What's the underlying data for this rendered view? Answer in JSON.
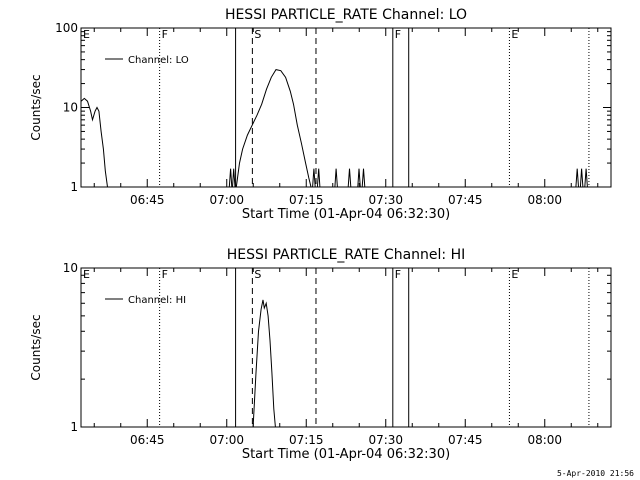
{
  "timestamp": "5-Apr-2010 21:56",
  "chart_data": [
    {
      "type": "line",
      "title": "HESSI PARTICLE_RATE Channel: LO",
      "xlabel": "Start Time (01-Apr-04 06:32:30)",
      "ylabel": "Counts/sec",
      "yscale": "log",
      "ylim": [
        1,
        100
      ],
      "yticks": [
        {
          "v": 1,
          "label": "1"
        },
        {
          "v": 10,
          "label": "10"
        },
        {
          "v": 100,
          "label": "100"
        }
      ],
      "xlim": [
        6.5417,
        8.2083
      ],
      "xticks": [
        {
          "v": 6.75,
          "label": "06:45"
        },
        {
          "v": 7.0,
          "label": "07:00"
        },
        {
          "v": 7.25,
          "label": "07:15"
        },
        {
          "v": 7.5,
          "label": "07:30"
        },
        {
          "v": 7.75,
          "label": "07:45"
        },
        {
          "v": 8.0,
          "label": "08:00"
        }
      ],
      "legend": {
        "label": "Channel: LO",
        "placement": "top-left"
      },
      "grid": false,
      "markers": [
        {
          "t": 6.5417,
          "label": "E",
          "style": "none"
        },
        {
          "t": 6.7889,
          "label": "F",
          "style": "dotted"
        },
        {
          "t": 7.0278,
          "label": "",
          "style": "solid"
        },
        {
          "t": 7.0806,
          "label": "S",
          "style": "dashed"
        },
        {
          "t": 7.2806,
          "label": "",
          "style": "dashed"
        },
        {
          "t": 7.5222,
          "label": "F",
          "style": "solid"
        },
        {
          "t": 7.5722,
          "label": "",
          "style": "solid"
        },
        {
          "t": 7.8889,
          "label": "E",
          "style": "dotted"
        },
        {
          "t": 8.1389,
          "label": "",
          "style": "dotted"
        }
      ],
      "series": [
        {
          "segments": [
            [
              [
                6.542,
                12
              ],
              [
                6.552,
                13
              ],
              [
                6.562,
                12
              ],
              [
                6.572,
                9
              ],
              [
                6.578,
                7
              ],
              [
                6.586,
                9
              ],
              [
                6.592,
                10
              ],
              [
                6.598,
                9
              ],
              [
                6.605,
                5
              ],
              [
                6.612,
                3
              ],
              [
                6.618,
                1.6
              ],
              [
                6.625,
                1
              ]
            ],
            [
              [
                7.008,
                1
              ],
              [
                7.012,
                1.7
              ],
              [
                7.016,
                1
              ]
            ],
            [
              [
                7.018,
                1
              ],
              [
                7.022,
                1.7
              ],
              [
                7.026,
                1
              ]
            ],
            [
              [
                7.03,
                1
              ],
              [
                7.04,
                2
              ],
              [
                7.05,
                3
              ],
              [
                7.065,
                4.5
              ],
              [
                7.08,
                6
              ],
              [
                7.095,
                8
              ],
              [
                7.11,
                11
              ],
              [
                7.125,
                17
              ],
              [
                7.14,
                24
              ],
              [
                7.155,
                30
              ],
              [
                7.17,
                29
              ],
              [
                7.185,
                24
              ],
              [
                7.2,
                16
              ],
              [
                7.21,
                11
              ],
              [
                7.222,
                6
              ],
              [
                7.235,
                3.5
              ],
              [
                7.248,
                2
              ],
              [
                7.258,
                1.3
              ],
              [
                7.265,
                1
              ]
            ],
            [
              [
                7.27,
                1
              ],
              [
                7.274,
                1.7
              ],
              [
                7.278,
                1
              ]
            ],
            [
              [
                7.285,
                1
              ],
              [
                7.289,
                1.7
              ],
              [
                7.293,
                1
              ]
            ],
            [
              [
                7.34,
                1
              ],
              [
                7.344,
                1.7
              ],
              [
                7.348,
                1
              ]
            ],
            [
              [
                7.382,
                1
              ],
              [
                7.386,
                1.7
              ],
              [
                7.39,
                1
              ]
            ],
            [
              [
                7.412,
                1
              ],
              [
                7.416,
                1.7
              ],
              [
                7.42,
                1
              ]
            ],
            [
              [
                7.426,
                1
              ],
              [
                7.43,
                1.7
              ],
              [
                7.434,
                1
              ]
            ],
            [
              [
                8.098,
                1
              ],
              [
                8.102,
                1.7
              ],
              [
                8.106,
                1
              ]
            ],
            [
              [
                8.112,
                1
              ],
              [
                8.116,
                1.7
              ],
              [
                8.12,
                1
              ]
            ],
            [
              [
                8.126,
                1
              ],
              [
                8.13,
                1.7
              ],
              [
                8.134,
                1
              ]
            ]
          ]
        }
      ]
    },
    {
      "type": "line",
      "title": "HESSI PARTICLE_RATE Channel: HI",
      "xlabel": "Start Time (01-Apr-04 06:32:30)",
      "ylabel": "Counts/sec",
      "yscale": "log",
      "ylim": [
        1,
        10
      ],
      "yticks": [
        {
          "v": 1,
          "label": "1"
        },
        {
          "v": 10,
          "label": "10"
        }
      ],
      "xlim": [
        6.5417,
        8.2083
      ],
      "xticks": [
        {
          "v": 6.75,
          "label": "06:45"
        },
        {
          "v": 7.0,
          "label": "07:00"
        },
        {
          "v": 7.25,
          "label": "07:15"
        },
        {
          "v": 7.5,
          "label": "07:30"
        },
        {
          "v": 7.75,
          "label": "07:45"
        },
        {
          "v": 8.0,
          "label": "08:00"
        }
      ],
      "legend": {
        "label": "Channel: HI",
        "placement": "top-left"
      },
      "grid": false,
      "markers": [
        {
          "t": 6.5417,
          "label": "E",
          "style": "none"
        },
        {
          "t": 6.7889,
          "label": "F",
          "style": "dotted"
        },
        {
          "t": 7.0278,
          "label": "",
          "style": "solid"
        },
        {
          "t": 7.0806,
          "label": "S",
          "style": "dashed"
        },
        {
          "t": 7.2806,
          "label": "",
          "style": "dashed"
        },
        {
          "t": 7.5222,
          "label": "F",
          "style": "solid"
        },
        {
          "t": 7.5722,
          "label": "",
          "style": "solid"
        },
        {
          "t": 7.8889,
          "label": "E",
          "style": "dotted"
        },
        {
          "t": 8.1389,
          "label": "",
          "style": "dotted"
        }
      ],
      "series": [
        {
          "segments": [
            [
              [
                7.083,
                1
              ],
              [
                7.092,
                2.2
              ],
              [
                7.1,
                4
              ],
              [
                7.108,
                5.5
              ],
              [
                7.114,
                6.3
              ],
              [
                7.118,
                5.6
              ],
              [
                7.124,
                6
              ],
              [
                7.13,
                5
              ],
              [
                7.136,
                3.5
              ],
              [
                7.142,
                2.2
              ],
              [
                7.148,
                1.3
              ],
              [
                7.153,
                1
              ]
            ]
          ]
        }
      ]
    }
  ]
}
